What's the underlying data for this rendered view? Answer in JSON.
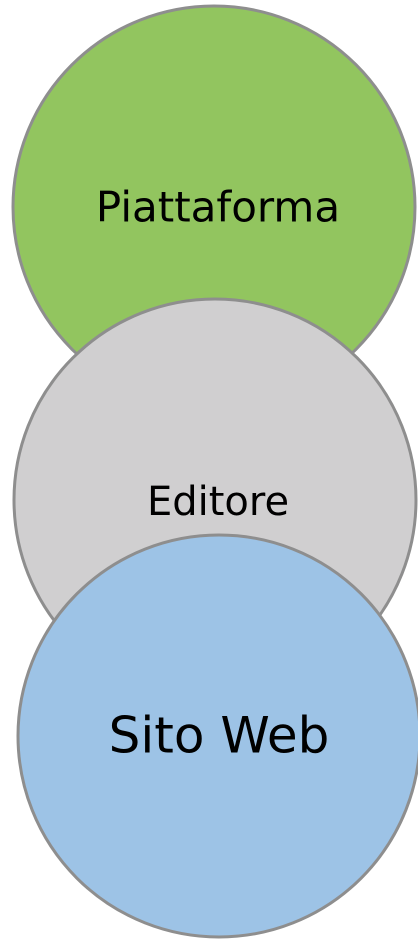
{
  "nodes": [
    {
      "label": "Piattaforma"
    },
    {
      "label": "Editore"
    },
    {
      "label": "Sito Web"
    }
  ]
}
